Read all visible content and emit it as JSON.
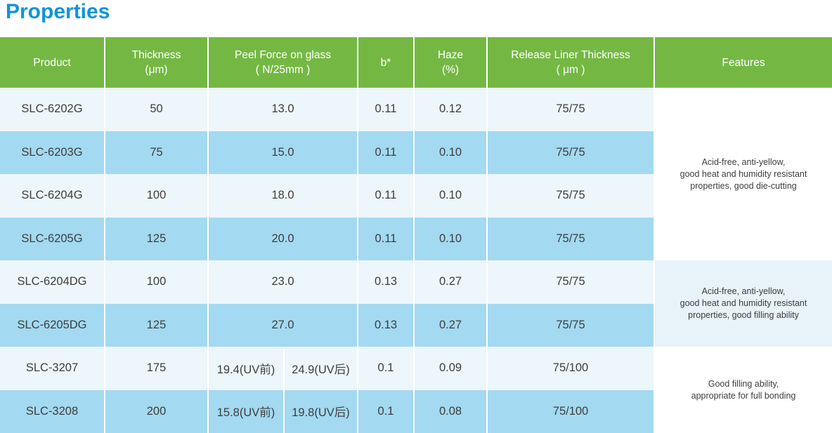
{
  "page_title": "Properties",
  "colors": {
    "title_blue": "#1094d7",
    "header_green": "#74b843",
    "row_light": "#edf6fa",
    "row_blue": "#a3d9f1",
    "features_tint": "#e8f2f9",
    "text_dark": "#3d3d3d"
  },
  "table": {
    "columns": [
      {
        "label": "Product",
        "sub": ""
      },
      {
        "label": "Thickness",
        "sub": "(μm)"
      },
      {
        "label": "Peel Force on glass",
        "sub": "( N/25mm )"
      },
      {
        "label": "b*",
        "sub": ""
      },
      {
        "label": "Haze",
        "sub": "(%)"
      },
      {
        "label": "Release Liner Thickness",
        "sub": "( μm )"
      },
      {
        "label": "Features",
        "sub": ""
      }
    ],
    "rows": [
      {
        "product": "SLC-6202G",
        "thickness": "50",
        "peel": "13.0",
        "b": "0.11",
        "haze": "0.12",
        "liner": "75/75"
      },
      {
        "product": "SLC-6203G",
        "thickness": "75",
        "peel": "15.0",
        "b": "0.11",
        "haze": "0.10",
        "liner": "75/75"
      },
      {
        "product": "SLC-6204G",
        "thickness": "100",
        "peel": "18.0",
        "b": "0.11",
        "haze": "0.10",
        "liner": "75/75"
      },
      {
        "product": "SLC-6205G",
        "thickness": "125",
        "peel": "20.0",
        "b": "0.11",
        "haze": "0.10",
        "liner": "75/75"
      },
      {
        "product": "SLC-6204DG",
        "thickness": "100",
        "peel": "23.0",
        "b": "0.13",
        "haze": "0.27",
        "liner": "75/75"
      },
      {
        "product": "SLC-6205DG",
        "thickness": "125",
        "peel": "27.0",
        "b": "0.13",
        "haze": "0.27",
        "liner": "75/75"
      },
      {
        "product": "SLC-3207",
        "thickness": "175",
        "peel_before": "19.4(UV前)",
        "peel_after": "24.9(UV后)",
        "b": "0.1",
        "haze": "0.09",
        "liner": "75/100"
      },
      {
        "product": "SLC-3208",
        "thickness": "200",
        "peel_before": "15.8(UV前)",
        "peel_after": "19.8(UV后)",
        "b": "0.1",
        "haze": "0.08",
        "liner": "75/100"
      }
    ],
    "feature_groups": [
      {
        "row_span": "rows 1-4",
        "text": "Acid-free, anti-yellow,\ngood heat and humidity resistant\nproperties, good die-cutting"
      },
      {
        "row_span": "rows 5-6",
        "text": "Acid-free, anti-yellow,\ngood heat and humidity resistant\nproperties, good filling ability"
      },
      {
        "row_span": "rows 7-8",
        "text": "Good filling ability,\nappropriate for full bonding"
      }
    ]
  }
}
